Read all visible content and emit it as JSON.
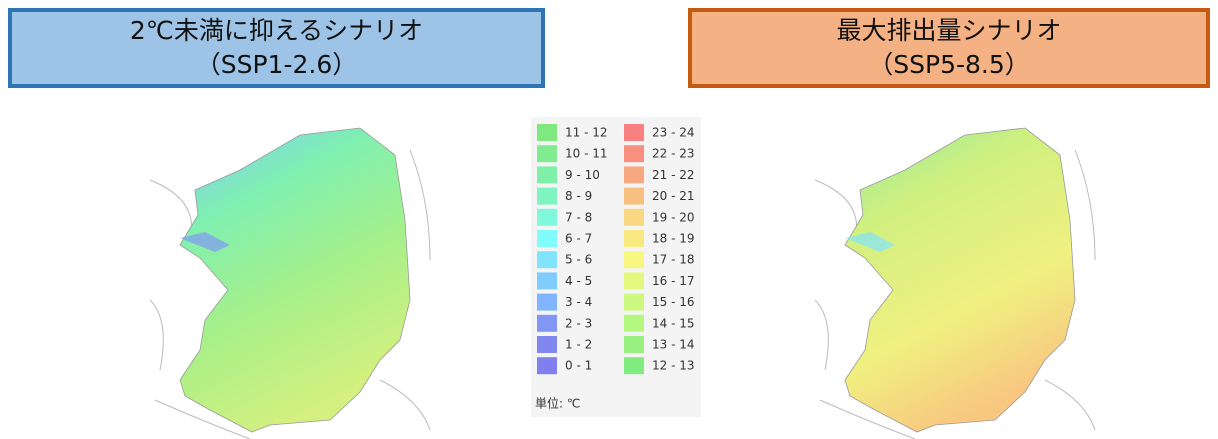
{
  "headers": [
    {
      "title": "2℃未満に抑えるシナリオ",
      "subtitle": "（SSP1-2.6）"
    },
    {
      "title": "最大排出量シナリオ",
      "subtitle": "（SSP5-8.5）"
    }
  ],
  "legend": {
    "columns": [
      [
        {
          "label": "11 - 12",
          "color": "#80e880"
        },
        {
          "label": "10 - 11",
          "color": "#80ec90"
        },
        {
          "label": "9 - 10",
          "color": "#80f0a8"
        },
        {
          "label": "8 - 9",
          "color": "#80f4c0"
        },
        {
          "label": "7 - 8",
          "color": "#80f8dc"
        },
        {
          "label": "6 - 7",
          "color": "#80fcfc"
        },
        {
          "label": "5 - 6",
          "color": "#80e4fc"
        },
        {
          "label": "4 - 5",
          "color": "#80ccfc"
        },
        {
          "label": "3 - 4",
          "color": "#80b4fc"
        },
        {
          "label": "2 - 3",
          "color": "#8098f4"
        },
        {
          "label": "1 - 2",
          "color": "#8088f0"
        },
        {
          "label": "0 - 1",
          "color": "#7f7ff0"
        }
      ],
      [
        {
          "label": "23 - 24",
          "color": "#f88080"
        },
        {
          "label": "22 - 23",
          "color": "#f89080"
        },
        {
          "label": "21 - 22",
          "color": "#f8a880"
        },
        {
          "label": "20 - 21",
          "color": "#f8c080"
        },
        {
          "label": "19 - 20",
          "color": "#f8d880"
        },
        {
          "label": "18 - 19",
          "color": "#f8e880"
        },
        {
          "label": "17 - 18",
          "color": "#f8f880"
        },
        {
          "label": "16 - 17",
          "color": "#e4f880"
        },
        {
          "label": "15 - 16",
          "color": "#ccf880"
        },
        {
          "label": "14 - 15",
          "color": "#b4f880"
        },
        {
          "label": "13 - 14",
          "color": "#98f080"
        },
        {
          "label": "12 - 13",
          "color": "#80ec80"
        }
      ]
    ],
    "unit": "単位: ℃"
  }
}
